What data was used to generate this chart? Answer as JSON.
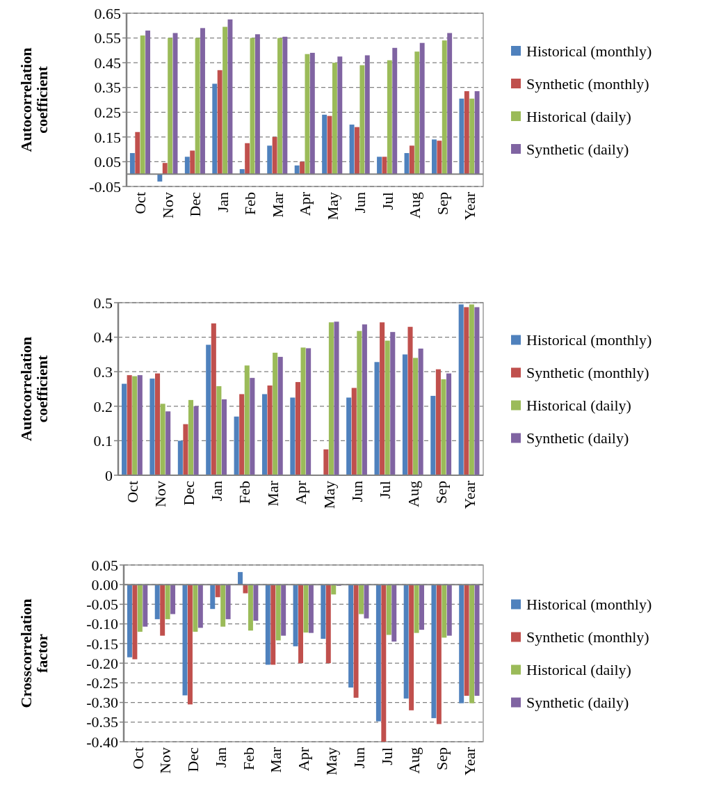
{
  "chart_data": [
    {
      "type": "bar",
      "ylabel": "Autocorrelation coefficient",
      "categories": [
        "Oct",
        "Nov",
        "Dec",
        "Jan",
        "Feb",
        "Mar",
        "Apr",
        "May",
        "Jun",
        "Jul",
        "Aug",
        "Sep",
        "Year"
      ],
      "ylim": [
        -0.05,
        0.65
      ],
      "yticks": [
        -0.05,
        0.05,
        0.15,
        0.25,
        0.35,
        0.45,
        0.55,
        0.65
      ],
      "grid": "y",
      "legend": "right",
      "series": [
        {
          "name": "Historical (monthly)",
          "color": "#4f81bd",
          "values": [
            0.085,
            -0.03,
            0.07,
            0.365,
            0.02,
            0.115,
            0.035,
            0.24,
            0.2,
            0.07,
            0.085,
            0.14,
            0.305
          ]
        },
        {
          "name": "Synthetic (monthly)",
          "color": "#c0504d",
          "values": [
            0.17,
            0.045,
            0.095,
            0.42,
            0.125,
            0.15,
            0.05,
            0.235,
            0.19,
            0.07,
            0.115,
            0.135,
            0.335
          ]
        },
        {
          "name": "Historical (daily)",
          "color": "#9bbb59",
          "values": [
            0.56,
            0.55,
            0.55,
            0.595,
            0.55,
            0.55,
            0.485,
            0.45,
            0.44,
            0.46,
            0.495,
            0.54,
            0.305
          ]
        },
        {
          "name": "Synthetic (daily)",
          "color": "#8064a2",
          "values": [
            0.58,
            0.57,
            0.59,
            0.625,
            0.565,
            0.555,
            0.49,
            0.475,
            0.48,
            0.51,
            0.53,
            0.57,
            0.335
          ]
        }
      ]
    },
    {
      "type": "bar",
      "ylabel": "Autocorrelation coefficient",
      "categories": [
        "Oct",
        "Nov",
        "Dec",
        "Jan",
        "Feb",
        "Mar",
        "Apr",
        "May",
        "Jun",
        "Jul",
        "Aug",
        "Sep",
        "Year"
      ],
      "ylim": [
        0,
        0.5
      ],
      "yticks": [
        0,
        0.1,
        0.2,
        0.3,
        0.4,
        0.5
      ],
      "grid": "y",
      "legend": "right",
      "series": [
        {
          "name": "Historical (monthly)",
          "color": "#4f81bd",
          "values": [
            0.265,
            0.28,
            0.1,
            0.378,
            0.17,
            0.235,
            0.225,
            0.002,
            0.225,
            0.328,
            0.35,
            0.23,
            0.495
          ]
        },
        {
          "name": "Synthetic (monthly)",
          "color": "#c0504d",
          "values": [
            0.29,
            0.295,
            0.148,
            0.44,
            0.235,
            0.26,
            0.27,
            0.075,
            0.253,
            0.443,
            0.43,
            0.307,
            0.487
          ]
        },
        {
          "name": "Historical (daily)",
          "color": "#9bbb59",
          "values": [
            0.287,
            0.207,
            0.218,
            0.258,
            0.318,
            0.355,
            0.37,
            0.443,
            0.418,
            0.39,
            0.34,
            0.278,
            0.495
          ]
        },
        {
          "name": "Synthetic (daily)",
          "color": "#8064a2",
          "values": [
            0.29,
            0.185,
            0.2,
            0.22,
            0.282,
            0.343,
            0.368,
            0.445,
            0.437,
            0.415,
            0.367,
            0.295,
            0.487
          ]
        }
      ]
    },
    {
      "type": "bar",
      "ylabel": "Crosscorrelation factor",
      "categories": [
        "Oct",
        "Nov",
        "Dec",
        "Jan",
        "Feb",
        "Mar",
        "Apr",
        "May",
        "Jun",
        "Jul",
        "Aug",
        "Sep",
        "Year"
      ],
      "ylim": [
        -0.4,
        0.05
      ],
      "yticks": [
        {
          "value": -0.4,
          "label": "-0.40"
        },
        {
          "value": -0.35,
          "label": "-0.35"
        },
        {
          "value": -0.3,
          "label": "-0.30"
        },
        {
          "value": -0.25,
          "label": "-0.25"
        },
        {
          "value": -0.2,
          "label": "-0.20"
        },
        {
          "value": -0.15,
          "label": "-0.15"
        },
        {
          "value": -0.1,
          "label": "-0.10"
        },
        {
          "value": -0.05,
          "label": "-0.05"
        },
        {
          "value": 0,
          "label": "0.00"
        },
        {
          "value": 0.05,
          "label": "0.05"
        }
      ],
      "grid": "y",
      "legend": "right",
      "series": [
        {
          "name": "Historical (monthly)",
          "color": "#4f81bd",
          "values": [
            -0.185,
            -0.088,
            -0.282,
            -0.062,
            0.032,
            -0.204,
            -0.157,
            -0.138,
            -0.262,
            -0.348,
            -0.29,
            -0.34,
            -0.302
          ]
        },
        {
          "name": "Synthetic (monthly)",
          "color": "#c0504d",
          "values": [
            -0.19,
            -0.13,
            -0.305,
            -0.032,
            -0.022,
            -0.204,
            -0.2,
            -0.2,
            -0.288,
            -0.4,
            -0.32,
            -0.355,
            -0.283
          ]
        },
        {
          "name": "Historical (daily)",
          "color": "#9bbb59",
          "values": [
            -0.12,
            -0.088,
            -0.12,
            -0.107,
            -0.117,
            -0.142,
            -0.122,
            -0.025,
            -0.075,
            -0.128,
            -0.123,
            -0.135,
            -0.302
          ]
        },
        {
          "name": "Synthetic (daily)",
          "color": "#8064a2",
          "values": [
            -0.107,
            -0.075,
            -0.11,
            -0.088,
            -0.092,
            -0.13,
            -0.123,
            -0.003,
            -0.086,
            -0.145,
            -0.115,
            -0.13,
            -0.283
          ]
        }
      ]
    }
  ]
}
